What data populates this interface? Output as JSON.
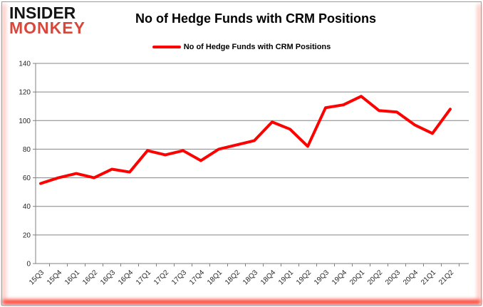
{
  "logo": {
    "line1": "INSIDER",
    "line2": "MONKEY"
  },
  "header": {
    "title": "No of Hedge Funds with CRM Positions"
  },
  "legend": {
    "label": "No of Hedge Funds with CRM Positions",
    "swatch_color": "#ff0000"
  },
  "chart_data": {
    "type": "line",
    "title": "No of Hedge Funds with CRM Positions",
    "categories": [
      "15Q3",
      "15Q4",
      "16Q1",
      "16Q2",
      "16Q3",
      "16Q4",
      "17Q1",
      "17Q2",
      "17Q3",
      "17Q4",
      "18Q1",
      "18Q2",
      "18Q3",
      "18Q4",
      "19Q1",
      "19Q2",
      "19Q3",
      "19Q4",
      "20Q1",
      "20Q2",
      "20Q3",
      "20Q4",
      "21Q1",
      "21Q2"
    ],
    "series": [
      {
        "name": "No of Hedge Funds with CRM Positions",
        "color": "#ff0000",
        "values": [
          56,
          60,
          63,
          60,
          66,
          64,
          79,
          76,
          79,
          72,
          80,
          83,
          86,
          99,
          94,
          82,
          109,
          111,
          117,
          107,
          106,
          97,
          91,
          108
        ]
      }
    ],
    "xlabel": "",
    "ylabel": "",
    "ylim": [
      0,
      140
    ],
    "ytick_step": 20,
    "grid": true,
    "legend_position": "top"
  },
  "colors": {
    "line": "#ff0000",
    "grid": "#848484",
    "axis": "#808080",
    "tick_label": "#262626",
    "frame_border": "#9c9c9c",
    "glow_red": "#ff1e0e"
  }
}
